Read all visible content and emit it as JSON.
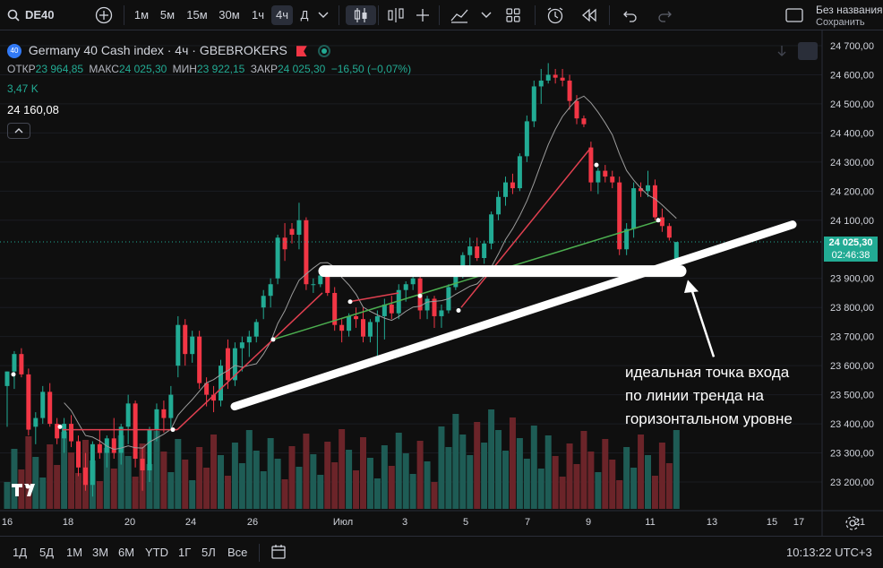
{
  "toolbar": {
    "symbol": "DE40",
    "intervals": [
      "1м",
      "5м",
      "15м",
      "30м",
      "1ч",
      "4ч",
      "Д"
    ],
    "active_interval": "4ч",
    "layout_name": "Без названия",
    "save_label": "Сохранить"
  },
  "legend": {
    "badge": "40",
    "title": "Germany 40 Cash index · 4ч · GBEBROKERS",
    "open_label": "ОТКР",
    "open_value": "23 964,85",
    "high_label": "МАКС",
    "high_value": "24 025,30",
    "low_label": "МИН",
    "low_value": "23 922,15",
    "close_label": "ЗАКР",
    "close_value": "24 025,30",
    "change": "−16,50 (−0,07%)",
    "volume": "3,47 K",
    "ma_value": "24 160,08"
  },
  "price_axis": {
    "ticks": [
      "24 700,00",
      "24 600,00",
      "24 500,00",
      "24 400,00",
      "24 300,00",
      "24 200,00",
      "24 100,00",
      "23 900,00",
      "23 800,00",
      "23 700,00",
      "23 600,00",
      "23 500,00",
      "23 400,00",
      "23 300,00",
      "23 200,00"
    ],
    "current_price": "24 025,30",
    "countdown": "02:46:38"
  },
  "time_axis": {
    "ticks": [
      "16",
      "18",
      "20",
      "24",
      "26",
      "Июл",
      "3",
      "5",
      "7",
      "9",
      "11",
      "13",
      "15",
      "17",
      "21"
    ]
  },
  "annotation": {
    "lines": [
      "идеальная точка входа",
      "по линии тренда на",
      "горизонтальном уровне"
    ]
  },
  "bottom": {
    "ranges": [
      "1Д",
      "5Д",
      "1М",
      "3М",
      "6М",
      "YTD",
      "1Г",
      "5Л",
      "Все"
    ],
    "clock": "10:13:22 UTC+3"
  },
  "colors": {
    "up": "#22ab94",
    "down": "#f23645",
    "vol_up": "#1e5c55",
    "vol_down": "#6b2429",
    "ma": "#9c9c9c",
    "trend_red": "#e04050",
    "trend_green": "#4caf50"
  },
  "chart_data": {
    "type": "candlestick",
    "title": "Germany 40 Cash index · 4ч · GBEBROKERS",
    "ylim": [
      23120,
      24740
    ],
    "candles": [
      {
        "o": 23530,
        "h": 23580,
        "l": 23390,
        "c": 23580
      },
      {
        "o": 23580,
        "h": 23650,
        "l": 23520,
        "c": 23640
      },
      {
        "o": 23640,
        "h": 23660,
        "l": 23560,
        "c": 23570
      },
      {
        "o": 23570,
        "h": 23590,
        "l": 23360,
        "c": 23380
      },
      {
        "o": 23390,
        "h": 23440,
        "l": 23330,
        "c": 23420
      },
      {
        "o": 23420,
        "h": 23530,
        "l": 23400,
        "c": 23510
      },
      {
        "o": 23510,
        "h": 23540,
        "l": 23390,
        "c": 23400
      },
      {
        "o": 23400,
        "h": 23420,
        "l": 23330,
        "c": 23350
      },
      {
        "o": 23350,
        "h": 23420,
        "l": 23300,
        "c": 23400
      },
      {
        "o": 23400,
        "h": 23430,
        "l": 23320,
        "c": 23340
      },
      {
        "o": 23340,
        "h": 23360,
        "l": 23220,
        "c": 23250
      },
      {
        "o": 23250,
        "h": 23300,
        "l": 23170,
        "c": 23190
      },
      {
        "o": 23190,
        "h": 23340,
        "l": 23150,
        "c": 23330
      },
      {
        "o": 23330,
        "h": 23380,
        "l": 23280,
        "c": 23300
      },
      {
        "o": 23300,
        "h": 23360,
        "l": 23250,
        "c": 23350
      },
      {
        "o": 23350,
        "h": 23420,
        "l": 23280,
        "c": 23300
      },
      {
        "o": 23300,
        "h": 23400,
        "l": 23260,
        "c": 23390
      },
      {
        "o": 23390,
        "h": 23500,
        "l": 23330,
        "c": 23470
      },
      {
        "o": 23470,
        "h": 23480,
        "l": 23250,
        "c": 23280
      },
      {
        "o": 23280,
        "h": 23320,
        "l": 23170,
        "c": 23240
      },
      {
        "o": 23240,
        "h": 23390,
        "l": 23200,
        "c": 23380
      },
      {
        "o": 23380,
        "h": 23470,
        "l": 23340,
        "c": 23450
      },
      {
        "o": 23450,
        "h": 23480,
        "l": 23370,
        "c": 23420
      },
      {
        "o": 23420,
        "h": 23530,
        "l": 23380,
        "c": 23500
      },
      {
        "o": 23600,
        "h": 23770,
        "l": 23560,
        "c": 23740
      },
      {
        "o": 23740,
        "h": 23760,
        "l": 23600,
        "c": 23640
      },
      {
        "o": 23640,
        "h": 23720,
        "l": 23610,
        "c": 23700
      },
      {
        "o": 23700,
        "h": 23720,
        "l": 23520,
        "c": 23540
      },
      {
        "o": 23540,
        "h": 23560,
        "l": 23460,
        "c": 23500
      },
      {
        "o": 23500,
        "h": 23530,
        "l": 23440,
        "c": 23480
      },
      {
        "o": 23480,
        "h": 23620,
        "l": 23460,
        "c": 23600
      },
      {
        "o": 23660,
        "h": 23690,
        "l": 23520,
        "c": 23550
      },
      {
        "o": 23550,
        "h": 23680,
        "l": 23530,
        "c": 23660
      },
      {
        "o": 23660,
        "h": 23700,
        "l": 23580,
        "c": 23680
      },
      {
        "o": 23680,
        "h": 23720,
        "l": 23630,
        "c": 23700
      },
      {
        "o": 23700,
        "h": 23760,
        "l": 23680,
        "c": 23750
      },
      {
        "o": 23800,
        "h": 23860,
        "l": 23760,
        "c": 23840
      },
      {
        "o": 23840,
        "h": 23900,
        "l": 23800,
        "c": 23880
      },
      {
        "o": 23900,
        "h": 24050,
        "l": 23880,
        "c": 24040
      },
      {
        "o": 24040,
        "h": 24090,
        "l": 23960,
        "c": 24000
      },
      {
        "o": 24070,
        "h": 24090,
        "l": 24020,
        "c": 24050
      },
      {
        "o": 24050,
        "h": 24160,
        "l": 24000,
        "c": 24100
      },
      {
        "o": 24100,
        "h": 24110,
        "l": 23860,
        "c": 23880
      },
      {
        "o": 23880,
        "h": 23900,
        "l": 23850,
        "c": 23880
      },
      {
        "o": 23880,
        "h": 23920,
        "l": 23870,
        "c": 23910
      },
      {
        "o": 23910,
        "h": 23930,
        "l": 23840,
        "c": 23850
      },
      {
        "o": 23850,
        "h": 23870,
        "l": 23720,
        "c": 23740
      },
      {
        "o": 23740,
        "h": 23760,
        "l": 23680,
        "c": 23720
      },
      {
        "o": 23720,
        "h": 23780,
        "l": 23700,
        "c": 23770
      },
      {
        "o": 23770,
        "h": 23800,
        "l": 23730,
        "c": 23760
      },
      {
        "o": 23760,
        "h": 23800,
        "l": 23680,
        "c": 23700
      },
      {
        "o": 23700,
        "h": 23760,
        "l": 23680,
        "c": 23750
      },
      {
        "o": 23750,
        "h": 23790,
        "l": 23620,
        "c": 23770
      },
      {
        "o": 23770,
        "h": 23830,
        "l": 23690,
        "c": 23810
      },
      {
        "o": 23810,
        "h": 23840,
        "l": 23760,
        "c": 23780
      },
      {
        "o": 23780,
        "h": 23880,
        "l": 23760,
        "c": 23860
      },
      {
        "o": 23860,
        "h": 23890,
        "l": 23820,
        "c": 23880
      },
      {
        "o": 23880,
        "h": 23930,
        "l": 23860,
        "c": 23900
      },
      {
        "o": 23900,
        "h": 23910,
        "l": 23760,
        "c": 23790
      },
      {
        "o": 23790,
        "h": 23840,
        "l": 23760,
        "c": 23830
      },
      {
        "o": 23830,
        "h": 23840,
        "l": 23730,
        "c": 23770
      },
      {
        "o": 23770,
        "h": 23810,
        "l": 23730,
        "c": 23790
      },
      {
        "o": 23790,
        "h": 23880,
        "l": 23780,
        "c": 23870
      },
      {
        "o": 23870,
        "h": 23930,
        "l": 23860,
        "c": 23920
      },
      {
        "o": 23920,
        "h": 23990,
        "l": 23900,
        "c": 23980
      },
      {
        "o": 23980,
        "h": 24040,
        "l": 23940,
        "c": 24010
      },
      {
        "o": 24010,
        "h": 24040,
        "l": 23960,
        "c": 23970
      },
      {
        "o": 23970,
        "h": 24030,
        "l": 23950,
        "c": 24020
      },
      {
        "o": 24020,
        "h": 24130,
        "l": 24000,
        "c": 24120
      },
      {
        "o": 24120,
        "h": 24200,
        "l": 24100,
        "c": 24180
      },
      {
        "o": 24180,
        "h": 24250,
        "l": 24150,
        "c": 24230
      },
      {
        "o": 24230,
        "h": 24260,
        "l": 24190,
        "c": 24210
      },
      {
        "o": 24210,
        "h": 24330,
        "l": 24200,
        "c": 24320
      },
      {
        "o": 24320,
        "h": 24460,
        "l": 24300,
        "c": 24440
      },
      {
        "o": 24440,
        "h": 24580,
        "l": 24420,
        "c": 24560
      },
      {
        "o": 24560,
        "h": 24620,
        "l": 24500,
        "c": 24580
      },
      {
        "o": 24580,
        "h": 24640,
        "l": 24570,
        "c": 24600
      },
      {
        "o": 24600,
        "h": 24620,
        "l": 24570,
        "c": 24590
      },
      {
        "o": 24590,
        "h": 24620,
        "l": 24560,
        "c": 24580
      },
      {
        "o": 24580,
        "h": 24600,
        "l": 24480,
        "c": 24510
      },
      {
        "o": 24510,
        "h": 24530,
        "l": 24430,
        "c": 24450
      },
      {
        "o": 24450,
        "h": 24460,
        "l": 24420,
        "c": 24430
      },
      {
        "o": 24350,
        "h": 24370,
        "l": 24200,
        "c": 24230
      },
      {
        "o": 24230,
        "h": 24280,
        "l": 24190,
        "c": 24270
      },
      {
        "o": 24270,
        "h": 24290,
        "l": 24230,
        "c": 24250
      },
      {
        "o": 24250,
        "h": 24270,
        "l": 24210,
        "c": 24230
      },
      {
        "o": 24230,
        "h": 24250,
        "l": 23980,
        "c": 24000
      },
      {
        "o": 24000,
        "h": 24090,
        "l": 23980,
        "c": 24070
      },
      {
        "o": 24070,
        "h": 24230,
        "l": 24040,
        "c": 24210
      },
      {
        "o": 24210,
        "h": 24230,
        "l": 24180,
        "c": 24200
      },
      {
        "o": 24200,
        "h": 24270,
        "l": 24180,
        "c": 24220
      },
      {
        "o": 24220,
        "h": 24240,
        "l": 24100,
        "c": 24110
      },
      {
        "o": 24110,
        "h": 24140,
        "l": 24060,
        "c": 24080
      },
      {
        "o": 24080,
        "h": 24090,
        "l": 24030,
        "c": 24040
      },
      {
        "o": 23965,
        "h": 24025,
        "l": 23922,
        "c": 24025
      }
    ]
  }
}
